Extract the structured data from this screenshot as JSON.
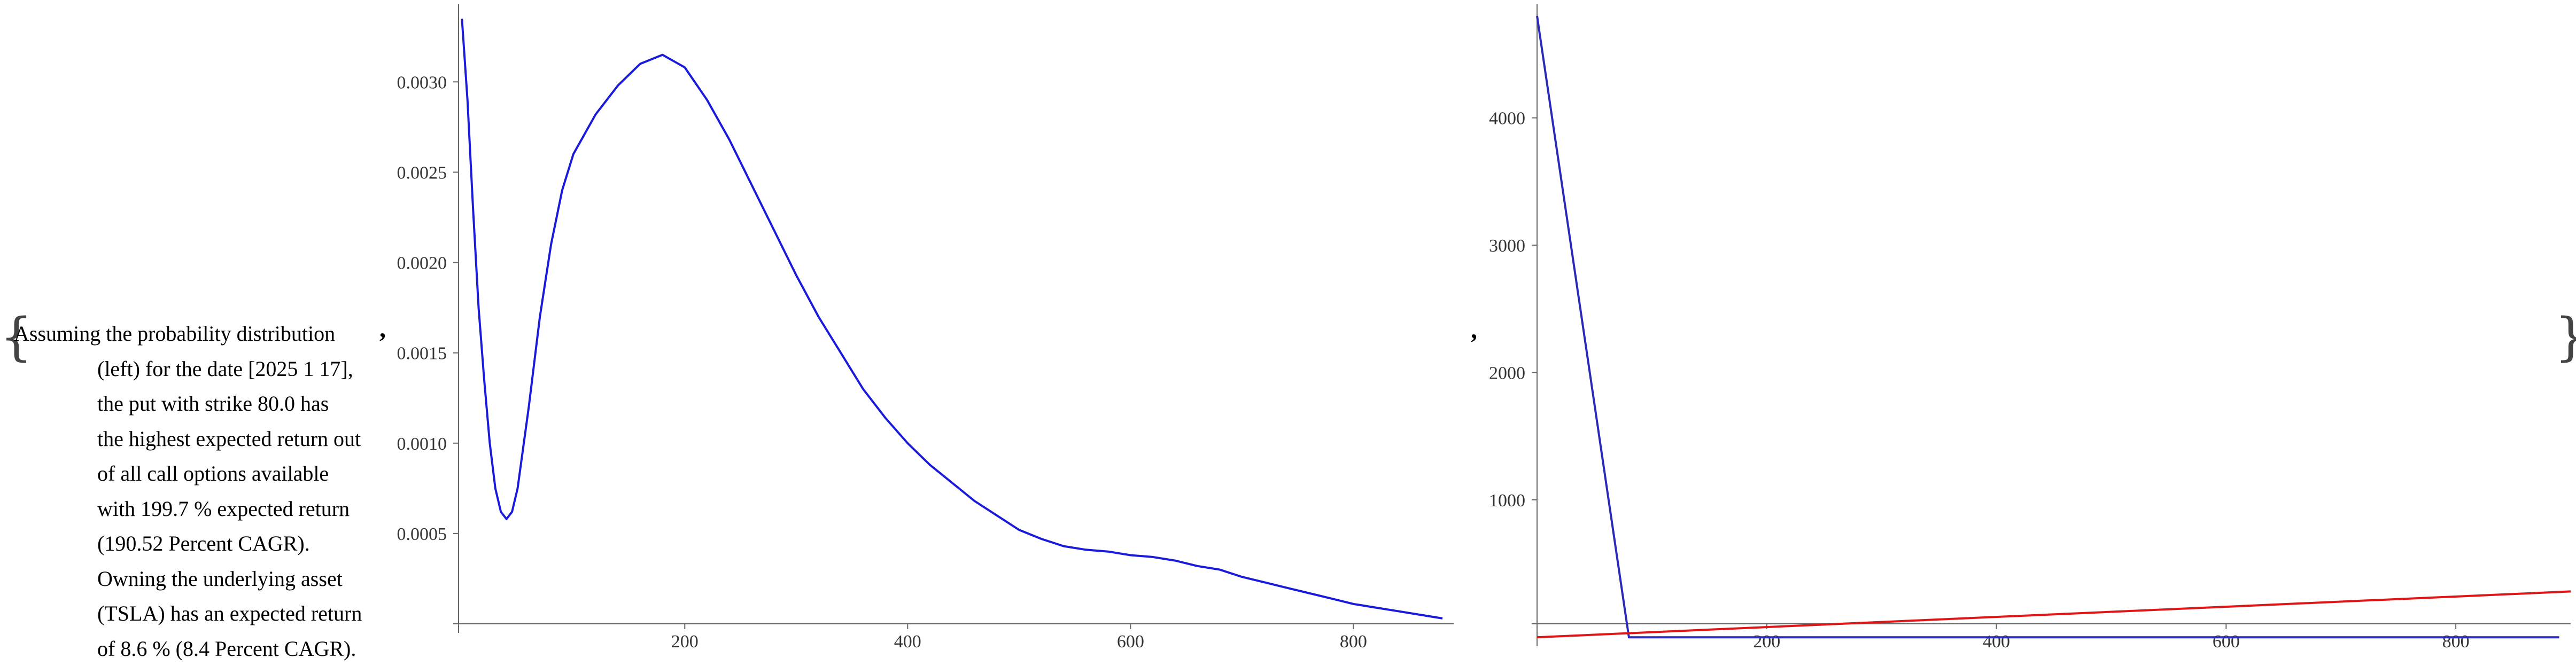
{
  "text_block": {
    "open_brace": "{",
    "close_brace": "}",
    "comma_1": ",",
    "comma_2": ",",
    "lines": [
      "Assuming the probability distribution",
      "(left) for the date [2025 1 17],",
      "the put with strike 80.0 has",
      "the highest expected return out",
      "of all call options available",
      "with 199.7 % expected return",
      "(190.52 Percent CAGR).",
      "Owning the underlying asset",
      "(TSLA) has an expected return",
      "of 8.6 % (8.4 Percent CAGR)."
    ]
  },
  "chart_data": [
    {
      "type": "line",
      "xlim": [
        -3,
        890
      ],
      "ylim": [
        0,
        0.0034
      ],
      "x_ticks": [
        200,
        400,
        600,
        800
      ],
      "y_ticks": [
        0.0005,
        0.001,
        0.0015,
        0.002,
        0.0025,
        0.003
      ],
      "y_tick_labels": [
        "0.0005",
        "0.0010",
        "0.0015",
        "0.0020",
        "0.0025",
        "0.0030"
      ],
      "x_tick_labels": [
        "200",
        "400",
        "600",
        "800"
      ],
      "grid": false,
      "series": [
        {
          "color": "#1a1adb",
          "points": [
            [
              0,
              0.00335
            ],
            [
              5,
              0.0029
            ],
            [
              10,
              0.0023
            ],
            [
              15,
              0.00175
            ],
            [
              20,
              0.00135
            ],
            [
              25,
              0.001
            ],
            [
              30,
              0.00075
            ],
            [
              35,
              0.00062
            ],
            [
              40,
              0.00058
            ],
            [
              45,
              0.00062
            ],
            [
              50,
              0.00075
            ],
            [
              60,
              0.0012
            ],
            [
              70,
              0.0017
            ],
            [
              80,
              0.0021
            ],
            [
              90,
              0.0024
            ],
            [
              100,
              0.0026
            ],
            [
              120,
              0.00282
            ],
            [
              140,
              0.00298
            ],
            [
              160,
              0.0031
            ],
            [
              180,
              0.00315
            ],
            [
              200,
              0.00308
            ],
            [
              220,
              0.0029
            ],
            [
              240,
              0.00268
            ],
            [
              260,
              0.00243
            ],
            [
              280,
              0.00218
            ],
            [
              300,
              0.00193
            ],
            [
              320,
              0.0017
            ],
            [
              340,
              0.0015
            ],
            [
              360,
              0.0013
            ],
            [
              380,
              0.00114
            ],
            [
              400,
              0.001
            ],
            [
              420,
              0.00088
            ],
            [
              440,
              0.00078
            ],
            [
              460,
              0.00068
            ],
            [
              480,
              0.0006
            ],
            [
              500,
              0.00052
            ],
            [
              520,
              0.00047
            ],
            [
              540,
              0.00043
            ],
            [
              560,
              0.00041
            ],
            [
              580,
              0.0004
            ],
            [
              600,
              0.00038
            ],
            [
              620,
              0.00037
            ],
            [
              640,
              0.00035
            ],
            [
              660,
              0.00032
            ],
            [
              680,
              0.0003
            ],
            [
              700,
              0.00026
            ],
            [
              720,
              0.00023
            ],
            [
              740,
              0.0002
            ],
            [
              760,
              0.00017
            ],
            [
              780,
              0.00014
            ],
            [
              800,
              0.00011
            ],
            [
              820,
              9e-05
            ],
            [
              840,
              7e-05
            ],
            [
              860,
              5e-05
            ],
            [
              880,
              3e-05
            ]
          ]
        }
      ]
    },
    {
      "type": "line",
      "xlim": [
        0,
        900
      ],
      "ylim": [
        -100,
        4850
      ],
      "x_ticks": [
        200,
        400,
        600,
        800
      ],
      "y_ticks": [
        1000,
        2000,
        3000,
        4000
      ],
      "y_tick_labels": [
        "1000",
        "2000",
        "3000",
        "4000"
      ],
      "x_tick_labels": [
        "200",
        "400",
        "600",
        "800"
      ],
      "grid": false,
      "series": [
        {
          "color": "#2a2ab8",
          "points": [
            [
              0,
              4800
            ],
            [
              80,
              -80
            ],
            [
              890,
              -80
            ]
          ]
        },
        {
          "color": "#e01515",
          "points": [
            [
              0,
              -80
            ],
            [
              900,
              280
            ]
          ]
        }
      ]
    }
  ]
}
